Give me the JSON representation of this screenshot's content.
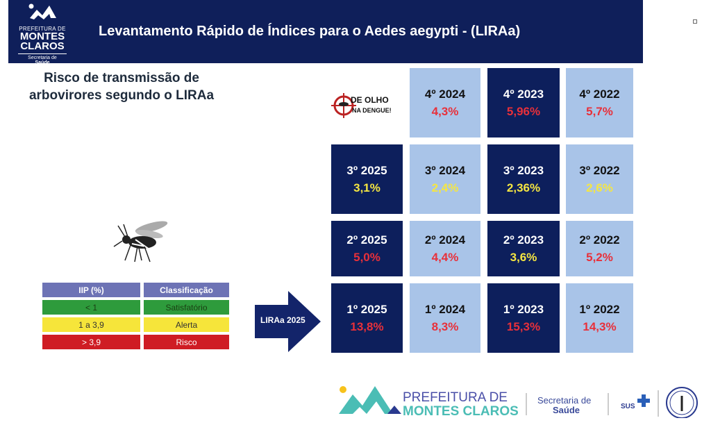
{
  "header": {
    "title": "Levantamento Rápido de Índices para o Aedes aegypti - (LIRAa)",
    "logo": {
      "line1": "PREFEITURA DE",
      "line2": "MONTES",
      "line3": "CLAROS",
      "line4": "Secretaria de",
      "line5": "Saúde"
    }
  },
  "subtitle": {
    "line1": "Risco de transmissão  de",
    "line2": "arbovirores segundo o LIRAa"
  },
  "legend": {
    "headers": [
      "IIP (%)",
      "Classificação"
    ],
    "rows": [
      {
        "range": "< 1",
        "class": "Satisfatório"
      },
      {
        "range": "1 a 3,9",
        "class": "Alerta"
      },
      {
        "range": "> 3,9",
        "class": "Risco"
      }
    ]
  },
  "arrow_label": "LIRAa 2025",
  "badge": {
    "line1": "DE OLHO",
    "line2": "NA DENGUE!"
  },
  "colors": {
    "navy": "#0d1f5c",
    "light": "#a9c4e8",
    "red": "#e8303a",
    "yellow": "#f5e642"
  },
  "grid": [
    [
      null,
      {
        "label": "4º 2024",
        "value": "4,3%",
        "status": "red"
      },
      {
        "label": "4º 2023",
        "value": "5,96%",
        "status": "red"
      },
      {
        "label": "4º 2022",
        "value": "5,7%",
        "status": "red"
      }
    ],
    [
      {
        "label": "3º 2025",
        "value": "3,1%",
        "status": "yellow"
      },
      {
        "label": "3º 2024",
        "value": "2,4%",
        "status": "yellow"
      },
      {
        "label": "3º 2023",
        "value": "2,36%",
        "status": "yellow"
      },
      {
        "label": "3º 2022",
        "value": "2,6%",
        "status": "yellow"
      }
    ],
    [
      {
        "label": "2º 2025",
        "value": "5,0%",
        "status": "red"
      },
      {
        "label": "2º 2024",
        "value": "4,4%",
        "status": "red"
      },
      {
        "label": "2º 2023",
        "value": "3,6%",
        "status": "yellow"
      },
      {
        "label": "2º 2022",
        "value": "5,2%",
        "status": "red"
      }
    ],
    [
      {
        "label": "1º 2025",
        "value": "13,8%",
        "status": "red"
      },
      {
        "label": "1º 2024",
        "value": "8,3%",
        "status": "red"
      },
      {
        "label": "1º 2023",
        "value": "15,3%",
        "status": "red"
      },
      {
        "label": "1º 2022",
        "value": "14,3%",
        "status": "red"
      }
    ]
  ],
  "footer": {
    "line1": "PREFEITURA DE",
    "line2": "MONTES CLAROS",
    "sec1": "Secretaria de",
    "sec2": "Saúde",
    "sus": "SUS"
  }
}
